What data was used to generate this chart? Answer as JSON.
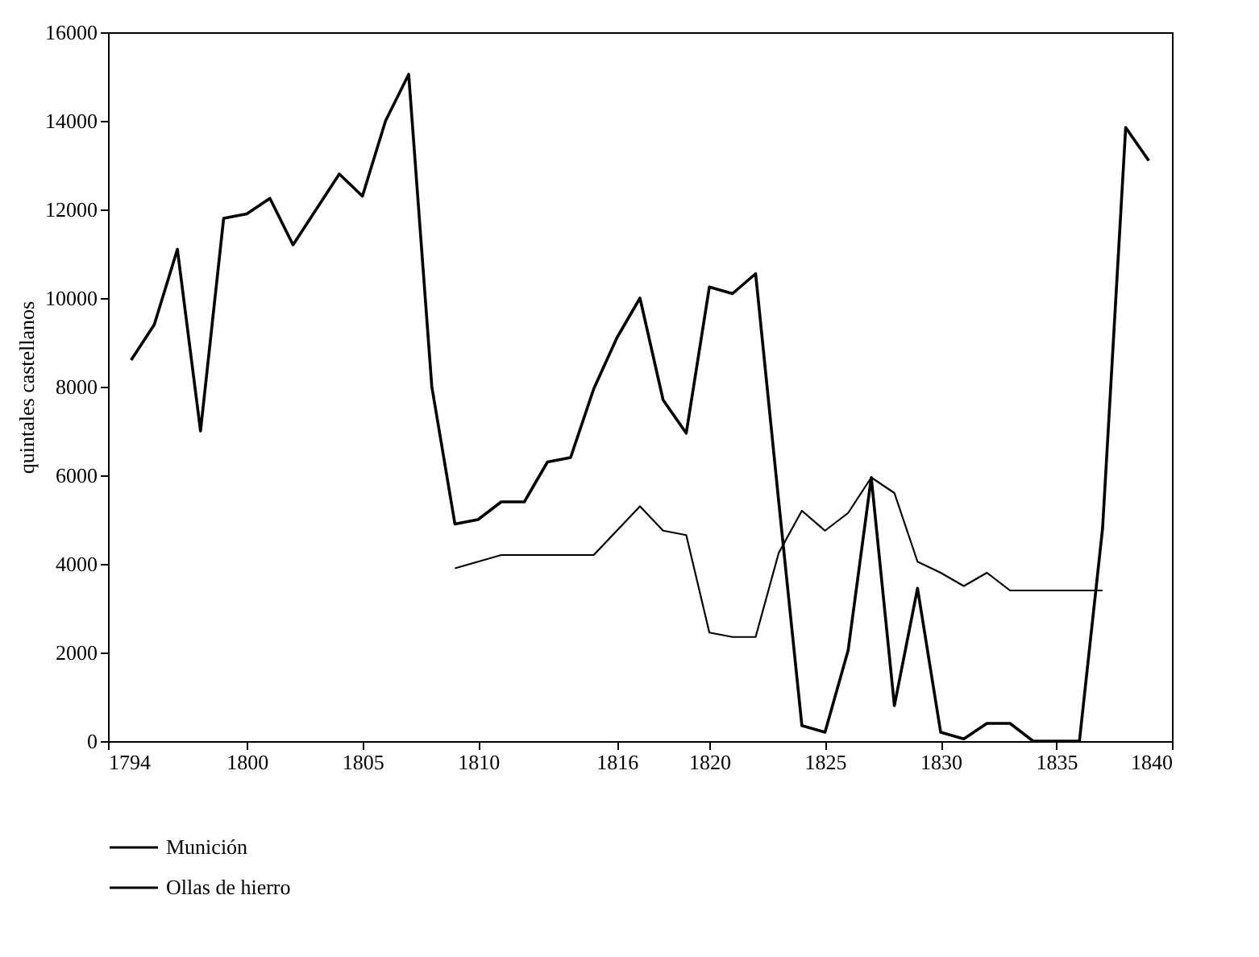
{
  "chart_data": {
    "type": "line",
    "ylabel": "quintales castellanos",
    "x": [
      1795,
      1796,
      1797,
      1798,
      1799,
      1800,
      1801,
      1802,
      1803,
      1804,
      1805,
      1806,
      1807,
      1808,
      1809,
      1810,
      1811,
      1812,
      1813,
      1814,
      1815,
      1816,
      1817,
      1818,
      1819,
      1820,
      1821,
      1822,
      1823,
      1824,
      1825,
      1826,
      1827,
      1828,
      1829,
      1830,
      1831,
      1832,
      1833,
      1834,
      1835,
      1836,
      1837,
      1838,
      1839
    ],
    "series": [
      {
        "name": "Munición",
        "color": "#000000",
        "values": [
          8600,
          9400,
          11100,
          7000,
          11800,
          11900,
          12250,
          11200,
          12000,
          12800,
          12300,
          14000,
          15050,
          8000,
          4900,
          5000,
          5400,
          5400,
          6300,
          6400,
          7950,
          9100,
          10000,
          7700,
          6950,
          10250,
          10100,
          10550,
          5400,
          350,
          200,
          2050,
          5950,
          800,
          3450,
          200,
          50,
          400,
          400,
          0,
          0,
          0,
          4800,
          13850,
          13100
        ]
      },
      {
        "name": "Ollas de hierro",
        "color": "#000000",
        "values": [
          null,
          null,
          null,
          null,
          null,
          null,
          null,
          null,
          null,
          null,
          null,
          null,
          null,
          null,
          3900,
          4050,
          4200,
          4200,
          4200,
          4200,
          4200,
          4750,
          5300,
          4750,
          4650,
          2450,
          2350,
          2350,
          4250,
          5200,
          4750,
          5150,
          5950,
          5600,
          4050,
          3800,
          3500,
          3800,
          3400,
          3400,
          3400,
          3400,
          3400,
          null,
          null
        ]
      }
    ],
    "xlim": [
      1794,
      1840
    ],
    "xticks": [
      1794,
      1800,
      1805,
      1810,
      1816,
      1820,
      1825,
      1830,
      1835,
      1840
    ],
    "ylim": [
      0,
      16000
    ],
    "yticks": [
      0,
      2000,
      4000,
      6000,
      8000,
      10000,
      12000,
      14000,
      16000
    ],
    "grid": false,
    "legend": "bottom"
  }
}
